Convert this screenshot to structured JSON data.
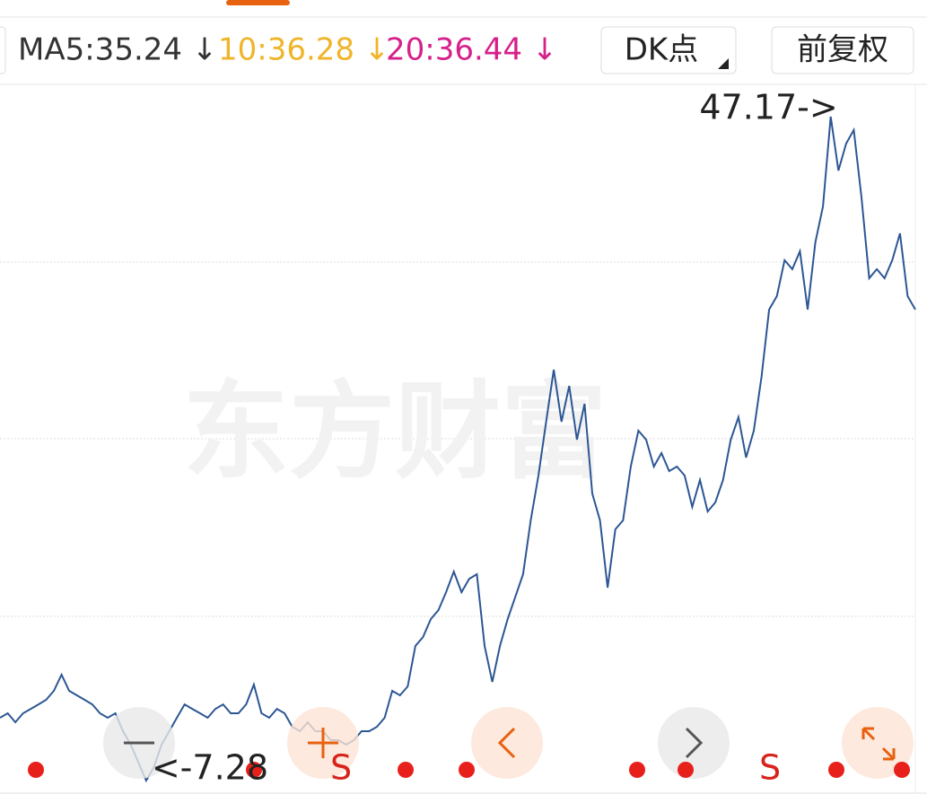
{
  "header": {
    "ma5": "MA5:35.24 ↓",
    "ma10": "10:36.28 ↓",
    "ma20": "20:36.44 ↓",
    "dk_button": "DK点",
    "adjust_button": "前复权"
  },
  "watermark": "东方财富",
  "chart_data": {
    "type": "line",
    "series": [
      {
        "color": "#2c5694",
        "values": [
          -2.13,
          -1.76,
          -2.5,
          -1.76,
          -1.4,
          -1.03,
          -0.66,
          0.08,
          1.4,
          0.08,
          -0.29,
          -0.66,
          -1.03,
          -1.76,
          -2.13,
          -1.76,
          -3.23,
          -4.34,
          -5.81,
          -7.28,
          -6.18,
          -4.34,
          -3.23,
          -2.13,
          -1.03,
          -1.4,
          -1.76,
          -2.13,
          -1.4,
          -1.03,
          -1.76,
          -1.76,
          -1.03,
          0.59,
          -1.76,
          -2.13,
          -1.4,
          -1.76,
          -2.87,
          -3.23,
          -2.5,
          -3.23,
          -3.23,
          -3.97,
          -3.97,
          -4.34,
          -3.97,
          -3.23,
          -3.23,
          -2.87,
          -2.13,
          0.08,
          -0.29,
          0.44,
          3.76,
          4.49,
          5.96,
          6.7,
          8.17,
          9.86,
          8.17,
          9.27,
          9.64,
          3.76,
          0.81,
          3.76,
          5.96,
          7.8,
          9.64,
          14.06,
          17.74,
          22.15,
          26.42,
          22.15,
          25.09,
          20.68,
          23.62,
          16.26,
          14.06,
          8.54,
          13.32,
          14.06,
          18.47,
          21.42,
          20.68,
          18.47,
          19.58,
          18.1,
          18.47,
          17.74,
          15.16,
          17.37,
          14.79,
          15.53,
          17.37,
          20.68,
          22.52,
          19.21,
          21.42,
          25.83,
          31.35,
          32.45,
          35.4,
          34.66,
          36.13,
          31.35,
          36.87,
          39.81,
          47.17,
          42.75,
          44.96,
          46.07,
          40.55,
          33.92,
          34.66,
          33.92,
          35.4,
          37.6,
          32.45,
          31.35
        ]
      }
    ],
    "annotations": {
      "max": "47.17->",
      "min": "<-7.28"
    },
    "markers": [
      "S",
      "S"
    ]
  }
}
